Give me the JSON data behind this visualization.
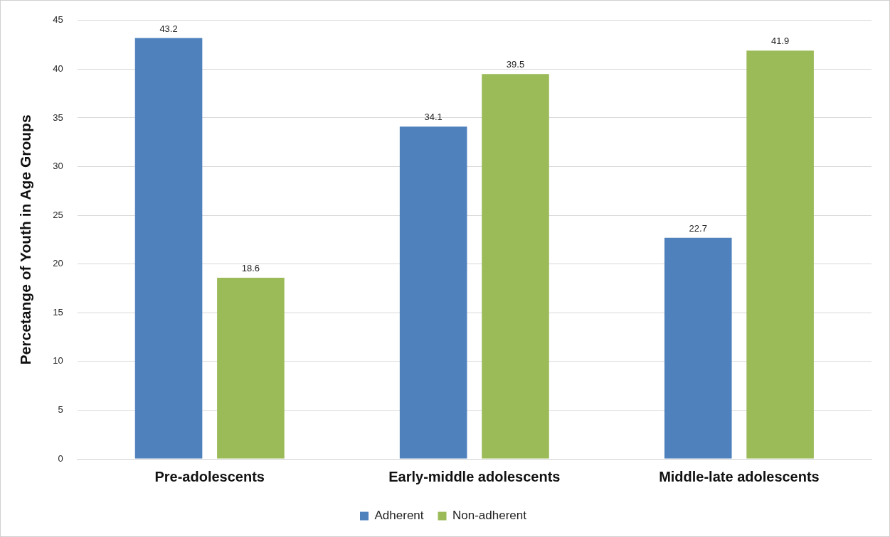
{
  "chart_data": {
    "type": "bar",
    "ylabel": "Percetange of Youth in Age Groups",
    "categories": [
      "Pre-adolescents",
      "Early-middle adolescents",
      "Middle-late adolescents"
    ],
    "series": [
      {
        "name": "Adherent",
        "color": "#4f81bd",
        "values": [
          43.2,
          34.1,
          22.7
        ]
      },
      {
        "name": "Non-adherent",
        "color": "#9bbb59",
        "values": [
          18.6,
          39.5,
          41.9
        ]
      }
    ],
    "ylim": [
      0,
      45
    ],
    "yticks": [
      0,
      5,
      10,
      15,
      20,
      25,
      30,
      35,
      40,
      45
    ],
    "grid": "y",
    "legend": "bottom",
    "data_labels": true
  }
}
